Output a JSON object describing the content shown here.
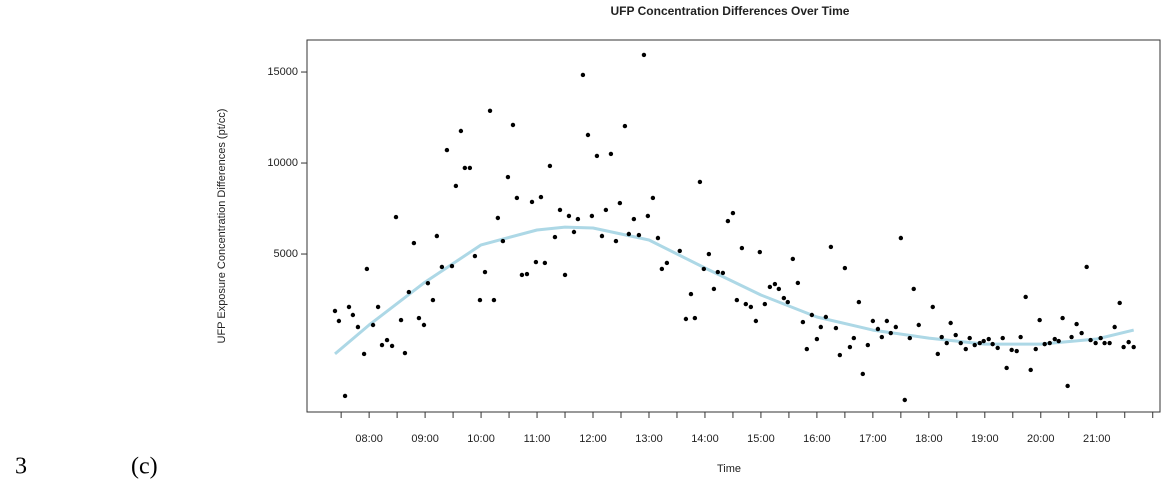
{
  "figure": {
    "number": "3",
    "caption": "(c)"
  },
  "chart_data": {
    "type": "scatter",
    "title": "UFP Concentration Differences Over Time",
    "x_label": "Time",
    "y_label": "UFP Exposure Concentration Differences (pt/cc)",
    "xlim": [
      6.89,
      22.13
    ],
    "ylim": [
      -3680,
      16760
    ],
    "xticks": [
      {
        "value": 8,
        "label": "08:00"
      },
      {
        "value": 9,
        "label": "09:00"
      },
      {
        "value": 10,
        "label": "10:00"
      },
      {
        "value": 11,
        "label": "11:00"
      },
      {
        "value": 12,
        "label": "12:00"
      },
      {
        "value": 13,
        "label": "13:00"
      },
      {
        "value": 14,
        "label": "14:00"
      },
      {
        "value": 15,
        "label": "15:00"
      },
      {
        "value": 16,
        "label": "16:00"
      },
      {
        "value": 17,
        "label": "17:00"
      },
      {
        "value": 18,
        "label": "18:00"
      },
      {
        "value": 19,
        "label": "19:00"
      },
      {
        "value": 20,
        "label": "20:00"
      },
      {
        "value": 21,
        "label": "21:00"
      }
    ],
    "xminorticks": [
      7.5,
      8.5,
      9.5,
      10.5,
      11.5,
      12.5,
      13.5,
      14.5,
      15.5,
      16.5,
      17.5,
      18.5,
      19.5,
      20.5,
      21.5,
      22
    ],
    "yticks": [
      5000,
      10000,
      15000
    ],
    "series": [
      {
        "type": "scatter",
        "color": "#000000",
        "x": [
          7.39,
          7.46,
          7.57,
          7.64,
          7.71,
          7.8,
          7.91,
          7.96,
          8.07,
          8.16,
          8.23,
          8.32,
          8.41,
          8.48,
          8.57,
          8.64,
          8.71,
          8.8,
          8.89,
          8.98,
          9.05,
          9.14,
          9.21,
          9.3,
          9.39,
          9.48,
          9.55,
          9.64,
          9.71,
          9.8,
          9.89,
          9.98,
          10.07,
          10.16,
          10.23,
          10.3,
          10.39,
          10.48,
          10.57,
          10.64,
          10.73,
          10.82,
          10.91,
          10.98,
          11.07,
          11.14,
          11.23,
          11.32,
          11.41,
          11.5,
          11.57,
          11.66,
          11.73,
          11.82,
          11.91,
          11.98,
          12.07,
          12.16,
          12.23,
          12.32,
          12.41,
          12.48,
          12.57,
          12.64,
          12.73,
          12.82,
          12.91,
          12.98,
          13.07,
          13.16,
          13.23,
          13.32,
          13.55,
          13.66,
          13.75,
          13.82,
          13.91,
          13.98,
          14.07,
          14.16,
          14.23,
          14.32,
          14.41,
          14.5,
          14.57,
          14.66,
          14.73,
          14.82,
          14.91,
          14.98,
          15.07,
          15.16,
          15.25,
          15.32,
          15.41,
          15.48,
          15.57,
          15.66,
          15.75,
          15.82,
          15.91,
          16,
          16.07,
          16.16,
          16.25,
          16.34,
          16.41,
          16.5,
          16.59,
          16.66,
          16.75,
          16.82,
          16.91,
          17,
          17.09,
          17.16,
          17.25,
          17.32,
          17.41,
          17.5,
          17.57,
          17.66,
          17.73,
          17.82,
          18.07,
          18.16,
          18.23,
          18.32,
          18.39,
          18.48,
          18.57,
          18.66,
          18.73,
          18.82,
          18.91,
          18.98,
          19.07,
          19.14,
          19.23,
          19.32,
          19.39,
          19.48,
          19.57,
          19.64,
          19.73,
          19.82,
          19.91,
          19.98,
          20.07,
          20.16,
          20.25,
          20.32,
          20.39,
          20.48,
          20.55,
          20.64,
          20.73,
          20.82,
          20.89,
          20.98,
          21.07,
          21.14,
          21.23,
          21.32,
          21.41,
          21.48,
          21.57,
          21.66
        ],
        "values": [
          1870,
          1320,
          -2800,
          2090,
          1650,
          990,
          -490,
          4180,
          1100,
          2090,
          0,
          270,
          -50,
          7030,
          1370,
          -440,
          2910,
          5600,
          1480,
          1100,
          3400,
          2470,
          5990,
          4290,
          10710,
          4340,
          8740,
          11760,
          9730,
          9730,
          4890,
          2470,
          4010,
          12870,
          2470,
          6980,
          5710,
          9230,
          12090,
          8080,
          3850,
          3900,
          7860,
          4560,
          8130,
          4510,
          9840,
          5930,
          7420,
          3850,
          7090,
          6210,
          6920,
          14840,
          11540,
          7090,
          10390,
          5990,
          7420,
          10500,
          5710,
          7800,
          12030,
          6100,
          6920,
          6040,
          15940,
          7090,
          8080,
          5880,
          4180,
          4510,
          5170,
          1430,
          2800,
          1480,
          8960,
          4180,
          5000,
          3080,
          4010,
          3960,
          6810,
          7250,
          2470,
          5330,
          2250,
          2090,
          1320,
          5110,
          2250,
          3190,
          3350,
          3080,
          2580,
          2360,
          4730,
          3410,
          1260,
          -220,
          1650,
          330,
          990,
          1540,
          5390,
          930,
          -550,
          4230,
          -110,
          380,
          2360,
          -1590,
          0,
          1320,
          880,
          440,
          1320,
          660,
          990,
          5880,
          -3020,
          380,
          3080,
          1100,
          2090,
          -490,
          440,
          110,
          1210,
          550,
          110,
          -220,
          380,
          0,
          110,
          220,
          330,
          50,
          -160,
          380,
          -1260,
          -270,
          -330,
          440,
          2640,
          -1370,
          -220,
          1370,
          50,
          110,
          330,
          220,
          1480,
          -2250,
          440,
          1150,
          660,
          4290,
          270,
          110,
          380,
          110,
          110,
          990,
          2310,
          -110,
          160,
          -110
        ]
      },
      {
        "type": "line",
        "color": "#add8e6",
        "x": [
          7.39,
          8,
          9,
          10,
          11,
          11.5,
          12,
          13,
          14,
          15,
          16,
          17,
          18,
          19,
          20,
          21,
          21.66
        ],
        "values": [
          -490,
          1100,
          3460,
          5500,
          6320,
          6480,
          6430,
          5770,
          4230,
          2750,
          1540,
          820,
          380,
          50,
          50,
          330,
          820
        ]
      }
    ]
  }
}
